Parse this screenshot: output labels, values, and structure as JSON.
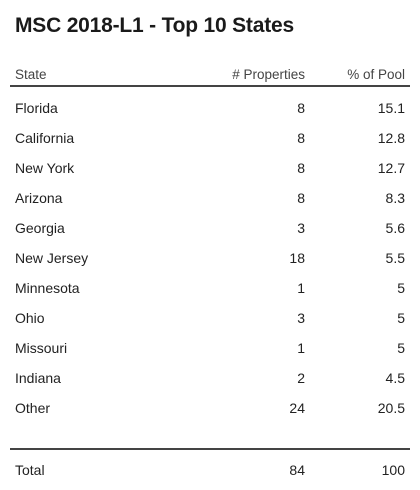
{
  "title": "MSC 2018-L1 - Top 10 States",
  "table": {
    "headers": {
      "state": "State",
      "properties": "# Properties",
      "pct": "% of Pool"
    },
    "rows": [
      {
        "state": "Florida",
        "properties": "8",
        "pct": "15.1"
      },
      {
        "state": "California",
        "properties": "8",
        "pct": "12.8"
      },
      {
        "state": "New York",
        "properties": "8",
        "pct": "12.7"
      },
      {
        "state": "Arizona",
        "properties": "8",
        "pct": "8.3"
      },
      {
        "state": "Georgia",
        "properties": "3",
        "pct": "5.6"
      },
      {
        "state": "New Jersey",
        "properties": "18",
        "pct": "5.5"
      },
      {
        "state": "Minnesota",
        "properties": "1",
        "pct": "5"
      },
      {
        "state": "Ohio",
        "properties": "3",
        "pct": "5"
      },
      {
        "state": "Missouri",
        "properties": "1",
        "pct": "5"
      },
      {
        "state": "Indiana",
        "properties": "2",
        "pct": "4.5"
      },
      {
        "state": "Other",
        "properties": "24",
        "pct": "20.5"
      }
    ],
    "total": {
      "state": "Total",
      "properties": "84",
      "pct": "100"
    }
  }
}
